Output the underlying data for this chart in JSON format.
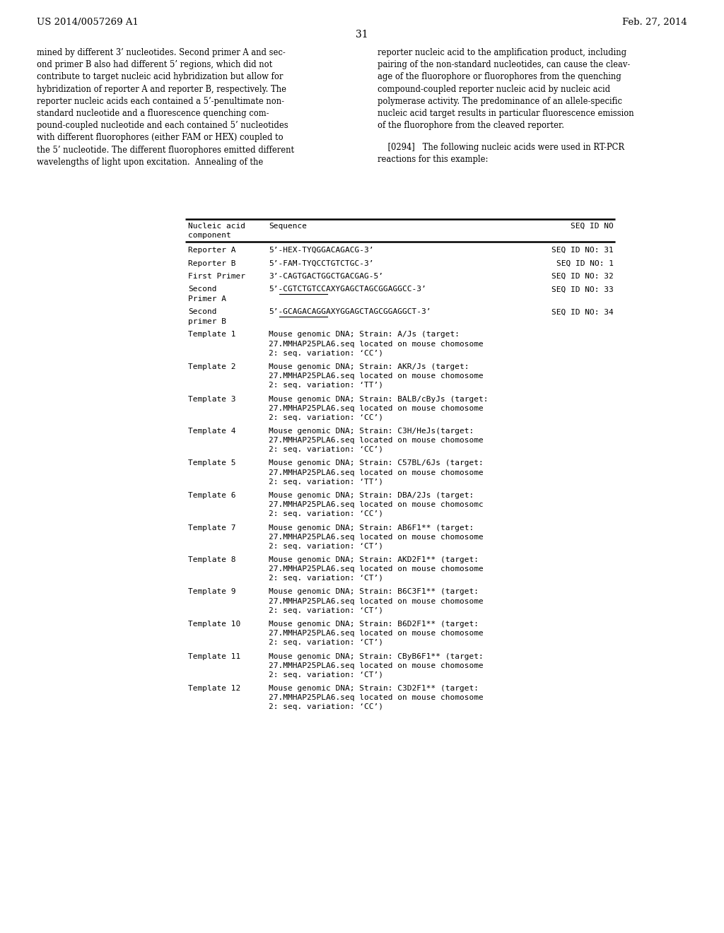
{
  "bg_color": "#ffffff",
  "header_left": "US 2014/0057269 A1",
  "header_right": "Feb. 27, 2014",
  "page_number": "31",
  "left_col_text": "mined by different 3’ nucleotides. Second primer A and sec-\nond primer B also had different 5’ regions, which did not\ncontribute to target nucleic acid hybridization but allow for\nhybridization of reporter A and reporter B, respectively. The\nreporter nucleic acids each contained a 5’-penultimate non-\nstandard nucleotide and a fluorescence quenching com-\npound-coupled nucleotide and each contained 5’ nucleotides\nwith different fluorophores (either FAM or HEX) coupled to\nthe 5’ nucleotide. The different fluorophores emitted different\nwavelengths of light upon excitation.  Annealing of the",
  "right_col_para1": "reporter nucleic acid to the amplification product, including\npairing of the non-standard nucleotides, can cause the cleav-\nage of the fluorophore or fluorophores from the quenching\ncompound-coupled reporter nucleic acid by nucleic acid\npolymerase activity. The predominance of an allele-specific\nnucleic acid target results in particular fluorescence emission\nof the fluorophore from the cleaved reporter.",
  "right_col_para2": "    [0294]   The following nucleic acids were used in RT-PCR\nreactions for this example:",
  "table_rows": [
    {
      "col1": "Reporter A",
      "col2": "5’-HEX-TYQGGACAGACG-3’",
      "col3": "SEQ ID NO: 31"
    },
    {
      "col1": "Reporter B",
      "col2": "5’-FAM-TYQCCTGTCTGC-3’",
      "col3": "SEQ ID NO: 1"
    },
    {
      "col1": "First Primer",
      "col2": "3’-CAGTGACTGGCTGACGAG-5’",
      "col3": "SEQ ID NO: 32"
    },
    {
      "col1": "Second\nPrimer A",
      "col2": "5’-CGTCTGTCCAXYGAGCTAGCGGAGGCC-3’",
      "col3": "SEQ ID NO: 33",
      "ul_chars": [
        3,
        17
      ]
    },
    {
      "col1": "Second\nprimer B",
      "col2": "5’-GCAGACAGGAXYGGAGCTAGCGGAGGCT-3’",
      "col3": "SEQ ID NO: 34",
      "ul_chars": [
        3,
        17
      ]
    },
    {
      "col1": "Template 1",
      "col2": "Mouse genomic DNA; Strain: A/Js (target:\n27.MMHAP25PLA6.seq located on mouse chomosome\n2: seq. variation: ‘CC’)",
      "col3": ""
    },
    {
      "col1": "Template 2",
      "col2": "Mouse genomic DNA; Strain: AKR/Js (target:\n27.MMHAP25PLA6.seq located on mouse chomosome\n2: seq. variation: ‘TT’)",
      "col3": ""
    },
    {
      "col1": "Template 3",
      "col2": "Mouse genomic DNA; Strain: BALB/cByJs (target:\n27.MMHAP25PLA6.seq located on mouse chomosome\n2: seq. variation: ‘CC’)",
      "col3": ""
    },
    {
      "col1": "Template 4",
      "col2": "Mouse genomic DNA; Strain: C3H/HeJs(target:\n27.MMHAP25PLA6.seq located on mouse chomosome\n2: seq. variation: ‘CC’)",
      "col3": ""
    },
    {
      "col1": "Template 5",
      "col2": "Mouse genomic DNA; Strain: C57BL/6Js (target:\n27.MMHAP25PLA6.seq located on mouse chomosome\n2: seq. variation: ‘TT’)",
      "col3": ""
    },
    {
      "col1": "Template 6",
      "col2": "Mouse genomic DNA; Strain: DBA/2Js (target:\n27.MMHAP25PLA6.seq located on mouse chomosomc\n2: seq. variation: ‘CC’)",
      "col3": ""
    },
    {
      "col1": "Template 7",
      "col2": "Mouse genomic DNA; Strain: AB6F1** (target:\n27.MMHAP25PLA6.seq located on mouse chomosome\n2: seq. variation: ‘CT’)",
      "col3": ""
    },
    {
      "col1": "Template 8",
      "col2": "Mouse genomic DNA; Strain: AKD2F1** (target:\n27.MMHAP25PLA6.seq located on mouse chomosome\n2: seq. variation: ‘CT’)",
      "col3": ""
    },
    {
      "col1": "Template 9",
      "col2": "Mouse genomic DNA; Strain: B6C3F1** (target:\n27.MMHAP25PLA6.seq located on mouse chomosome\n2: seq. variation: ‘CT’)",
      "col3": ""
    },
    {
      "col1": "Template 10",
      "col2": "Mouse genomic DNA; Strain: B6D2F1** (target:\n27.MMHAP25PLA6.seq located on mouse chomosome\n2: seq. variation: ‘CT’)",
      "col3": ""
    },
    {
      "col1": "Template 11",
      "col2": "Mouse genomic DNA; Strain: CByB6F1** (target:\n27.MMHAP25PLA6.seq located on mouse chomosome\n2: seq. variation: ‘CT’)",
      "col3": ""
    },
    {
      "col1": "Template 12",
      "col2": "Mouse genomic DNA; Strain: C3D2F1** (target:\n27.MMHAP25PLA6.seq located on mouse chomosome\n2: seq. variation: ‘CC’)",
      "col3": ""
    }
  ]
}
